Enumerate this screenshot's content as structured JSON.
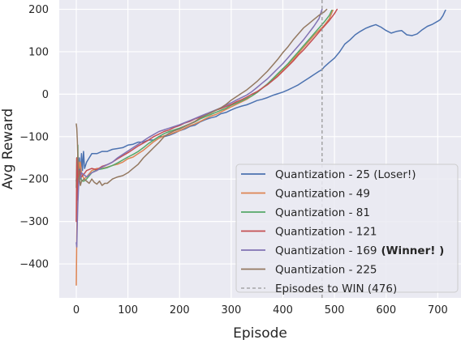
{
  "chart_data": {
    "type": "line",
    "xlabel": "Episode",
    "ylabel": "Avg Reward",
    "xlim": [
      -33,
      745
    ],
    "ylim": [
      -480,
      222
    ],
    "xticks": [
      0,
      100,
      200,
      300,
      400,
      500,
      600,
      700
    ],
    "yticks": [
      -400,
      -300,
      -200,
      -100,
      0,
      100,
      200
    ],
    "grid": true,
    "legend_position": "lower-right",
    "series": [
      {
        "name": "Quantization - 25 (Loser!)",
        "color": "#4c72b0",
        "x": [
          0,
          2,
          4,
          6,
          8,
          10,
          12,
          14,
          16,
          20,
          25,
          30,
          40,
          50,
          60,
          70,
          80,
          90,
          100,
          110,
          120,
          130,
          140,
          150,
          160,
          170,
          180,
          190,
          200,
          210,
          220,
          230,
          240,
          250,
          260,
          270,
          280,
          290,
          300,
          310,
          320,
          330,
          340,
          350,
          360,
          370,
          380,
          390,
          400,
          410,
          420,
          430,
          440,
          450,
          460,
          470,
          476,
          480,
          490,
          500,
          510,
          520,
          530,
          540,
          550,
          560,
          570,
          580,
          590,
          600,
          610,
          620,
          630,
          640,
          650,
          660,
          670,
          680,
          690,
          700,
          705,
          710,
          715
        ],
        "y": [
          -205,
          -165,
          -215,
          -150,
          -200,
          -140,
          -180,
          -135,
          -175,
          -160,
          -150,
          -140,
          -140,
          -135,
          -135,
          -130,
          -128,
          -126,
          -120,
          -118,
          -113,
          -113,
          -108,
          -108,
          -100,
          -100,
          -97,
          -92,
          -86,
          -82,
          -76,
          -73,
          -65,
          -60,
          -56,
          -53,
          -46,
          -43,
          -37,
          -32,
          -28,
          -25,
          -20,
          -15,
          -12,
          -8,
          -3,
          1,
          5,
          10,
          16,
          22,
          30,
          38,
          46,
          54,
          58,
          64,
          75,
          85,
          100,
          118,
          128,
          140,
          148,
          155,
          160,
          164,
          158,
          150,
          144,
          148,
          150,
          140,
          138,
          142,
          152,
          160,
          165,
          172,
          176,
          185,
          198
        ]
      },
      {
        "name": "Quantization - 49",
        "color": "#dd8452",
        "x": [
          0,
          1,
          2,
          3,
          4,
          5,
          6,
          8,
          10,
          15,
          20,
          30,
          40,
          50,
          60,
          70,
          80,
          90,
          100,
          110,
          120,
          130,
          140,
          150,
          160,
          170,
          180,
          190,
          200,
          210,
          220,
          230,
          240,
          250,
          260,
          270,
          280,
          290,
          300,
          310,
          320,
          330,
          340,
          350,
          360,
          370,
          380,
          390,
          400,
          410,
          420,
          430,
          440,
          450,
          460,
          470,
          480,
          490,
          497
        ],
        "y": [
          -450,
          -330,
          -250,
          -210,
          -180,
          -160,
          -175,
          -160,
          -185,
          -200,
          -195,
          -180,
          -175,
          -175,
          -172,
          -168,
          -165,
          -160,
          -152,
          -148,
          -140,
          -132,
          -122,
          -112,
          -104,
          -98,
          -95,
          -90,
          -86,
          -80,
          -74,
          -70,
          -64,
          -58,
          -52,
          -48,
          -42,
          -36,
          -30,
          -24,
          -18,
          -12,
          -4,
          4,
          14,
          24,
          34,
          46,
          58,
          70,
          82,
          96,
          110,
          124,
          138,
          150,
          162,
          178,
          198
        ]
      },
      {
        "name": "Quantization - 81",
        "color": "#55a868",
        "x": [
          0,
          1,
          2,
          3,
          4,
          5,
          6,
          8,
          10,
          15,
          20,
          30,
          40,
          50,
          60,
          70,
          80,
          90,
          100,
          110,
          120,
          130,
          140,
          150,
          160,
          170,
          180,
          190,
          200,
          210,
          220,
          230,
          240,
          250,
          260,
          270,
          280,
          290,
          300,
          310,
          320,
          330,
          340,
          350,
          360,
          370,
          380,
          390,
          400,
          410,
          420,
          430,
          440,
          450,
          460,
          470,
          480,
          490,
          495
        ],
        "y": [
          -220,
          -150,
          -240,
          -120,
          -210,
          -190,
          -200,
          -185,
          -205,
          -205,
          -200,
          -185,
          -178,
          -176,
          -173,
          -168,
          -162,
          -155,
          -148,
          -142,
          -135,
          -126,
          -116,
          -108,
          -100,
          -93,
          -88,
          -84,
          -80,
          -75,
          -70,
          -65,
          -58,
          -53,
          -48,
          -43,
          -38,
          -33,
          -26,
          -21,
          -16,
          -10,
          -4,
          4,
          14,
          24,
          36,
          48,
          60,
          72,
          86,
          100,
          114,
          128,
          142,
          156,
          170,
          186,
          198
        ]
      },
      {
        "name": "Quantization - 121",
        "color": "#c44e52",
        "x": [
          0,
          1,
          2,
          3,
          4,
          5,
          6,
          8,
          10,
          15,
          20,
          30,
          40,
          50,
          60,
          70,
          80,
          90,
          100,
          110,
          120,
          130,
          140,
          150,
          160,
          170,
          180,
          190,
          200,
          210,
          220,
          230,
          240,
          250,
          260,
          270,
          280,
          290,
          300,
          310,
          320,
          330,
          340,
          350,
          360,
          370,
          380,
          390,
          400,
          410,
          420,
          430,
          440,
          450,
          460,
          470,
          480,
          490,
          500,
          505
        ],
        "y": [
          -300,
          -150,
          -250,
          -165,
          -190,
          -195,
          -180,
          -190,
          -195,
          -188,
          -180,
          -175,
          -178,
          -170,
          -166,
          -160,
          -152,
          -145,
          -138,
          -130,
          -122,
          -115,
          -108,
          -100,
          -94,
          -88,
          -84,
          -78,
          -74,
          -68,
          -64,
          -58,
          -54,
          -49,
          -44,
          -38,
          -34,
          -29,
          -24,
          -18,
          -13,
          -7,
          0,
          6,
          14,
          22,
          32,
          42,
          54,
          66,
          78,
          92,
          104,
          118,
          132,
          146,
          160,
          174,
          190,
          200
        ]
      },
      {
        "name": "Quantization - 169",
        "color": "#8172b3",
        "x": [
          0,
          1,
          2,
          3,
          4,
          5,
          6,
          8,
          10,
          15,
          20,
          30,
          40,
          50,
          60,
          70,
          80,
          90,
          100,
          110,
          120,
          130,
          140,
          150,
          160,
          170,
          180,
          190,
          200,
          210,
          220,
          230,
          240,
          250,
          260,
          270,
          280,
          290,
          300,
          310,
          320,
          330,
          340,
          350,
          360,
          370,
          380,
          390,
          400,
          410,
          420,
          430,
          440,
          450,
          460,
          470,
          476
        ],
        "y": [
          -350,
          -360,
          -300,
          -260,
          -230,
          -205,
          -195,
          -200,
          -185,
          -190,
          -195,
          -185,
          -180,
          -172,
          -166,
          -160,
          -150,
          -142,
          -134,
          -126,
          -118,
          -110,
          -102,
          -95,
          -88,
          -84,
          -80,
          -76,
          -72,
          -67,
          -62,
          -57,
          -52,
          -47,
          -42,
          -37,
          -32,
          -26,
          -20,
          -14,
          -8,
          -2,
          6,
          16,
          26,
          36,
          48,
          60,
          72,
          86,
          100,
          114,
          128,
          144,
          160,
          178,
          200
        ]
      },
      {
        "name": "Quantization - 225",
        "color": "#937860",
        "x": [
          0,
          1,
          2,
          3,
          4,
          5,
          6,
          8,
          10,
          15,
          20,
          25,
          30,
          35,
          40,
          45,
          50,
          55,
          60,
          70,
          80,
          90,
          100,
          110,
          120,
          130,
          140,
          150,
          160,
          170,
          180,
          190,
          200,
          210,
          220,
          230,
          240,
          250,
          260,
          270,
          280,
          290,
          300,
          310,
          320,
          330,
          340,
          350,
          360,
          370,
          380,
          390,
          400,
          410,
          420,
          430,
          440,
          450,
          460,
          470,
          480,
          485
        ],
        "y": [
          -70,
          -80,
          -110,
          -150,
          -170,
          -185,
          -200,
          -215,
          -205,
          -200,
          -205,
          -210,
          -200,
          -208,
          -212,
          -205,
          -215,
          -210,
          -210,
          -200,
          -195,
          -192,
          -185,
          -175,
          -165,
          -150,
          -138,
          -126,
          -114,
          -100,
          -92,
          -86,
          -82,
          -76,
          -70,
          -64,
          -56,
          -50,
          -44,
          -38,
          -32,
          -24,
          -14,
          -6,
          2,
          10,
          20,
          30,
          42,
          54,
          68,
          82,
          98,
          112,
          128,
          142,
          156,
          166,
          176,
          186,
          194,
          200
        ]
      }
    ],
    "vline": {
      "name": "Episodes to WIN (476)",
      "x": 476,
      "color": "#999999"
    },
    "legend": [
      {
        "label": "Quantization - 25 (Loser!)",
        "bold": "",
        "color": "#4c72b0",
        "dashed": false
      },
      {
        "label": "Quantization - 49",
        "bold": "",
        "color": "#dd8452",
        "dashed": false
      },
      {
        "label": "Quantization - 81",
        "bold": "",
        "color": "#55a868",
        "dashed": false
      },
      {
        "label": "Quantization - 121",
        "bold": "",
        "color": "#c44e52",
        "dashed": false
      },
      {
        "label": "Quantization - 169",
        "bold": "(Winner! )",
        "color": "#8172b3",
        "dashed": false
      },
      {
        "label": "Quantization - 225",
        "bold": "",
        "color": "#937860",
        "dashed": false
      },
      {
        "label": "Episodes to WIN (476)",
        "bold": "",
        "color": "#999999",
        "dashed": true
      }
    ],
    "style": {
      "plot_background": "#eaeaf2",
      "grid_color": "#ffffff",
      "legend_background": "#eaeaf2",
      "legend_border": "#cccccc"
    }
  }
}
